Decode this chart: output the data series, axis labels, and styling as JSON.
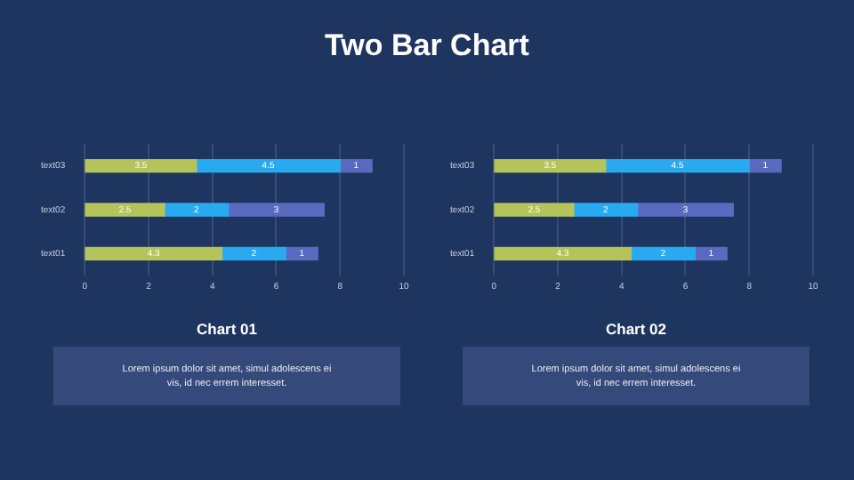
{
  "chart_data": [
    {
      "type": "bar",
      "orientation": "horizontal",
      "stacked": true,
      "title": "Chart 01",
      "categories": [
        "text03",
        "text02",
        "text01"
      ],
      "series": [
        {
          "color": "#b5c45a",
          "values": [
            3.5,
            2.5,
            4.3
          ]
        },
        {
          "color": "#29aaf0",
          "values": [
            4.5,
            2,
            2
          ]
        },
        {
          "color": "#5a6ac0",
          "values": [
            1,
            3,
            1
          ]
        }
      ],
      "xlim": [
        0,
        10
      ],
      "xticks": [
        0,
        2,
        4,
        6,
        8,
        10
      ],
      "grid": "x",
      "legend": false,
      "data_labels": true,
      "annotations": [
        "Two Bar Chart",
        "Lorem ipsum dolor sit amet, simul adolescens ei vis, id nec errem interesset."
      ]
    },
    {
      "type": "bar",
      "orientation": "horizontal",
      "stacked": true,
      "title": "Chart 02",
      "categories": [
        "text03",
        "text02",
        "text01"
      ],
      "series": [
        {
          "color": "#b5c45a",
          "values": [
            3.5,
            2.5,
            4.3
          ]
        },
        {
          "color": "#29aaf0",
          "values": [
            4.5,
            2,
            2
          ]
        },
        {
          "color": "#5a6ac0",
          "values": [
            1,
            3,
            1
          ]
        }
      ],
      "xlim": [
        0,
        10
      ],
      "xticks": [
        0,
        2,
        4,
        6,
        8,
        10
      ],
      "grid": "x",
      "legend": false,
      "data_labels": true,
      "annotations": [
        "Lorem ipsum dolor sit amet, simul adolescens ei vis, id nec errem interesset."
      ]
    }
  ]
}
